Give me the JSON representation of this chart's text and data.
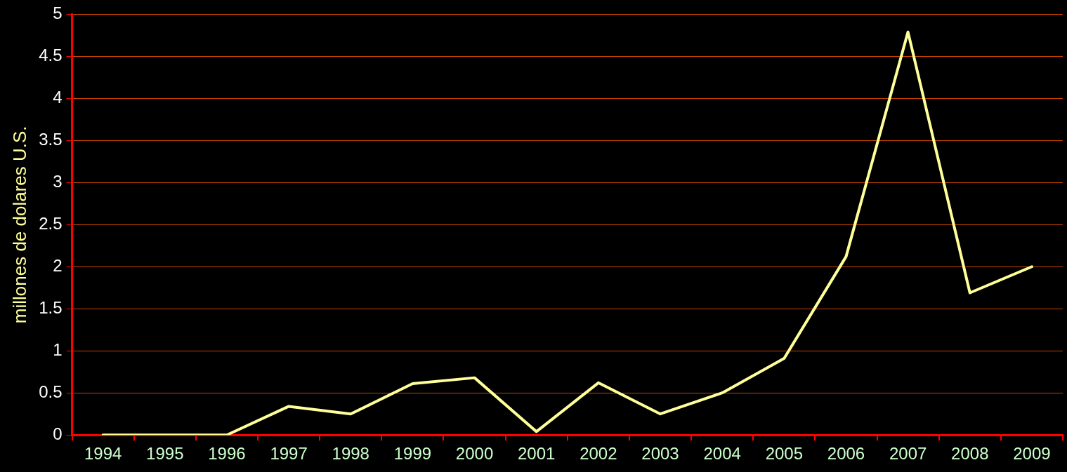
{
  "chart_data": {
    "type": "line",
    "ylabel": "millones de dolares U.S.",
    "categories": [
      "1994",
      "1995",
      "1996",
      "1997",
      "1998",
      "1999",
      "2000",
      "2001",
      "2002",
      "2003",
      "2004",
      "2005",
      "2006",
      "2007",
      "2008",
      "2009"
    ],
    "series": [
      {
        "color": "#ffff99",
        "values": [
          0,
          0,
          0,
          0.34,
          0.25,
          0.61,
          0.68,
          0.04,
          0.62,
          0.25,
          0.5,
          0.91,
          2.12,
          4.79,
          1.69,
          2.0
        ]
      }
    ],
    "ylim": [
      0,
      5
    ],
    "yticks": [
      0,
      0.5,
      1,
      1.5,
      2,
      2.5,
      3,
      3.5,
      4,
      4.5,
      5
    ],
    "grid": "y",
    "legend": false,
    "marker": "none",
    "line_style": "solid"
  }
}
